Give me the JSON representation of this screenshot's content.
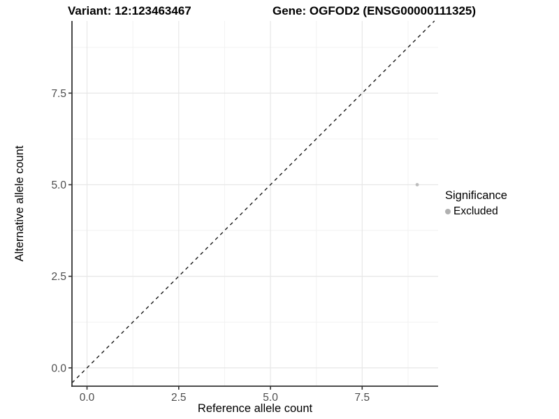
{
  "titles": {
    "variant": "Variant: 12:123463467",
    "gene": "Gene: OGFOD2 (ENSG00000111325)"
  },
  "chart_data": {
    "type": "scatter",
    "title": "Variant: 12:123463467 | Gene: OGFOD2 (ENSG00000111325)",
    "xlabel": "Reference allele count",
    "ylabel": "Alternative allele count",
    "xlim": [
      -0.41,
      9.57
    ],
    "ylim": [
      -0.5,
      9.47
    ],
    "x_ticks": [
      0.0,
      2.5,
      5.0,
      7.5
    ],
    "y_ticks": [
      0.0,
      2.5,
      5.0,
      7.5
    ],
    "x_minor_ticks": [
      1.25,
      3.75,
      6.25,
      8.75
    ],
    "y_minor_ticks": [
      1.25,
      3.75,
      6.25,
      8.75
    ],
    "grid": true,
    "reference_line": {
      "type": "identity y=x",
      "style": "dashed"
    },
    "series": [
      {
        "name": "Excluded",
        "points": [
          {
            "x": 9,
            "y": 5
          }
        ]
      }
    ],
    "legend": {
      "title": "Significance",
      "position": "right",
      "items": [
        {
          "label": "Excluded"
        }
      ]
    },
    "colors": {
      "point": "#bcbcbc",
      "legend_dot": "#b0b0b0",
      "reference_line": "#1a1a1a",
      "axis_line": "#333333",
      "tick_mark": "#333333",
      "tick_label": "#4d4d4d",
      "grid_major": "#e7e7e7",
      "grid_minor": "#f2f2f2",
      "background": "#ffffff"
    }
  }
}
